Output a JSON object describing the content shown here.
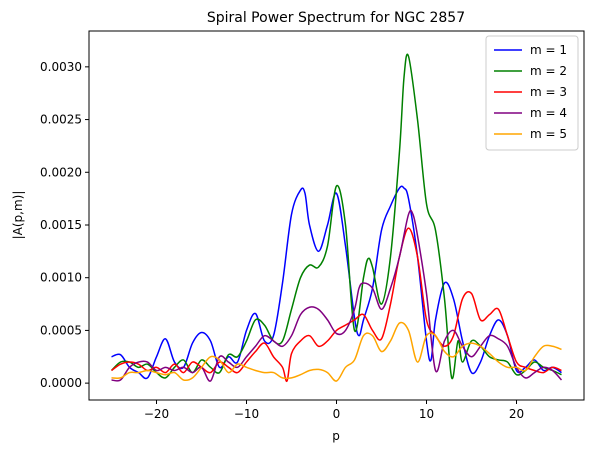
{
  "chart_data": {
    "type": "line",
    "title": "Spiral Power Spectrum for NGC 2857",
    "xlabel": "p",
    "ylabel": "|A(p,m)|",
    "xlim": [
      -27.5,
      27.5
    ],
    "ylim": [
      -0.00016,
      0.00334
    ],
    "xticks": [
      -20,
      -10,
      0,
      10,
      20
    ],
    "xtick_labels": [
      "−20",
      "−10",
      "0",
      "10",
      "20"
    ],
    "yticks": [
      0.0,
      0.0005,
      0.001,
      0.0015,
      0.002,
      0.0025,
      0.003
    ],
    "ytick_labels": [
      "0.0000",
      "0.0005",
      "0.0010",
      "0.0015",
      "0.0020",
      "0.0025",
      "0.0030"
    ],
    "grid": false,
    "legend_position": "top-right",
    "series": [
      {
        "name": "m = 1",
        "color": "#0000ff",
        "x": [
          -25,
          -24,
          -23,
          -22,
          -21,
          -20,
          -19,
          -18,
          -17,
          -16,
          -15,
          -14,
          -13,
          -12,
          -11,
          -10,
          -9,
          -8,
          -7,
          -6,
          -5,
          -4,
          -3.5,
          -3,
          -2,
          -1,
          0,
          1,
          2,
          2.5,
          3,
          4,
          5,
          6,
          7,
          7.5,
          8,
          9,
          10,
          10.5,
          11,
          12,
          13,
          14,
          15,
          16,
          17,
          18,
          19,
          20,
          21,
          22,
          23,
          24,
          25
        ],
        "y": [
          0.00025,
          0.00027,
          0.00015,
          0.0001,
          5e-05,
          0.00025,
          0.00042,
          0.0002,
          0.00015,
          0.00038,
          0.00048,
          0.0004,
          0.00015,
          0.00025,
          0.0002,
          0.0005,
          0.00066,
          0.0004,
          0.00045,
          0.00095,
          0.0016,
          0.00183,
          0.0018,
          0.0015,
          0.00125,
          0.0015,
          0.0018,
          0.0013,
          0.00062,
          0.00045,
          0.0006,
          0.0009,
          0.00145,
          0.00168,
          0.00185,
          0.00185,
          0.00175,
          0.0012,
          0.0004,
          0.00022,
          0.0006,
          0.00095,
          0.0008,
          0.0004,
          0.0001,
          0.0002,
          0.00045,
          0.0006,
          0.00045,
          0.00012,
          0.00015,
          0.00022,
          0.00012,
          0.00015,
          0.0001
        ]
      },
      {
        "name": "m = 2",
        "color": "#008000",
        "x": [
          -25,
          -24,
          -23,
          -22,
          -21,
          -20,
          -19,
          -18,
          -17,
          -16,
          -15,
          -14,
          -13,
          -12,
          -11,
          -10,
          -9,
          -8,
          -7,
          -6,
          -5,
          -4,
          -3,
          -2,
          -1,
          0,
          1,
          2,
          3,
          3.5,
          4,
          5,
          6,
          7,
          7.5,
          8,
          9,
          10,
          11,
          12,
          12.8,
          13.5,
          14,
          15,
          16,
          17,
          18,
          19,
          20,
          21,
          22,
          23,
          24,
          25
        ],
        "y": [
          0.00012,
          0.0002,
          0.0002,
          0.00015,
          0.00018,
          0.0001,
          5e-05,
          0.00015,
          0.00022,
          0.0001,
          0.00022,
          0.00015,
          0.0001,
          0.00027,
          0.00025,
          0.0004,
          0.0006,
          0.00055,
          0.0004,
          0.0004,
          0.0007,
          0.001,
          0.00112,
          0.0011,
          0.0013,
          0.00187,
          0.0015,
          0.0005,
          0.001,
          0.00118,
          0.0011,
          0.00075,
          0.0012,
          0.0022,
          0.0029,
          0.0031,
          0.0025,
          0.0017,
          0.00145,
          0.0008,
          5e-05,
          0.0004,
          0.0002,
          0.0004,
          0.00035,
          0.00025,
          0.00022,
          0.0002,
          8e-05,
          0.00012,
          0.0002,
          0.00015,
          0.00012,
          8e-05
        ]
      },
      {
        "name": "m = 3",
        "color": "#ff0000",
        "x": [
          -25,
          -24,
          -23,
          -22,
          -21,
          -20,
          -19,
          -18,
          -17,
          -16,
          -15,
          -14,
          -13,
          -12,
          -11,
          -10,
          -9,
          -8,
          -7,
          -6,
          -5.5,
          -5,
          -4,
          -3,
          -2,
          -1,
          0,
          1,
          2,
          3,
          4,
          5,
          6,
          7,
          8,
          9,
          10,
          11,
          12,
          13,
          14,
          15,
          16,
          17,
          18,
          19,
          20,
          21,
          22,
          23,
          24,
          25
        ],
        "y": [
          0.00012,
          0.00018,
          0.0002,
          0.00018,
          0.00012,
          0.00015,
          0.0001,
          0.00018,
          0.0001,
          0.0002,
          0.00015,
          0.0001,
          0.0002,
          0.00015,
          0.0001,
          0.0002,
          0.0003,
          0.00038,
          0.00025,
          0.00015,
          2e-05,
          0.00028,
          0.0004,
          0.00045,
          0.00035,
          0.0004,
          0.0005,
          0.00055,
          0.0006,
          0.00065,
          0.0005,
          0.00042,
          0.00075,
          0.0012,
          0.00147,
          0.0012,
          0.0006,
          0.00045,
          0.00035,
          0.00045,
          0.0008,
          0.00085,
          0.0006,
          0.00065,
          0.0007,
          0.00045,
          0.0002,
          0.00015,
          0.00012,
          0.0001,
          0.00015,
          0.00012
        ]
      },
      {
        "name": "m = 4",
        "color": "#800080",
        "x": [
          -25,
          -24,
          -23,
          -22,
          -21,
          -20,
          -19,
          -18,
          -17,
          -16,
          -15,
          -14,
          -13,
          -12,
          -11,
          -10,
          -9,
          -8,
          -7,
          -6,
          -5,
          -4,
          -3,
          -2,
          -1,
          0,
          1,
          2,
          2.5,
          3,
          4,
          5,
          6,
          7,
          8,
          8.5,
          9,
          10,
          11,
          12,
          13,
          14,
          15,
          16,
          17,
          18,
          19,
          20,
          21,
          22,
          23,
          24,
          25
        ],
        "y": [
          3e-05,
          3e-05,
          0.00015,
          0.0002,
          0.0002,
          0.00012,
          0.00015,
          0.00012,
          0.00015,
          0.0001,
          0.00015,
          2e-05,
          0.00025,
          0.0002,
          0.00015,
          0.00025,
          0.00035,
          0.00045,
          0.0004,
          0.00035,
          0.00045,
          0.00065,
          0.00072,
          0.0007,
          0.0006,
          0.00047,
          0.0005,
          0.0007,
          0.0009,
          0.00095,
          0.0009,
          0.0007,
          0.0009,
          0.0012,
          0.0016,
          0.0016,
          0.0014,
          0.00085,
          0.00012,
          0.0004,
          0.0005,
          0.00035,
          0.00025,
          0.00035,
          0.00045,
          0.00042,
          0.00035,
          0.00015,
          5e-05,
          0.0001,
          0.00015,
          0.00012,
          3e-05
        ]
      },
      {
        "name": "m = 5",
        "color": "#ffa500",
        "x": [
          -25,
          -24,
          -23,
          -22,
          -21,
          -20,
          -19,
          -18,
          -17,
          -16,
          -15,
          -14,
          -13,
          -12,
          -11,
          -10,
          -9,
          -8,
          -7,
          -6,
          -5,
          -4,
          -3,
          -2,
          -1,
          0,
          1,
          2,
          3,
          4,
          5,
          6,
          7,
          8,
          9,
          10,
          11,
          12,
          13,
          14,
          15,
          16,
          17,
          18,
          19,
          20,
          21,
          22,
          23,
          24,
          25
        ],
        "y": [
          5e-05,
          5e-05,
          0.0001,
          0.0001,
          0.00012,
          0.0001,
          8e-05,
          0.0001,
          3e-05,
          5e-05,
          0.00015,
          0.00025,
          0.00022,
          0.0001,
          0.00018,
          0.00015,
          0.00012,
          0.0001,
          0.0001,
          5e-05,
          5e-05,
          8e-05,
          0.00012,
          0.00013,
          0.0001,
          2e-05,
          0.00015,
          0.00022,
          0.00045,
          0.00045,
          0.0003,
          0.0004,
          0.00057,
          0.0005,
          0.0002,
          0.00045,
          0.00045,
          0.0003,
          0.00025,
          0.00035,
          0.00038,
          0.00035,
          0.00028,
          0.0002,
          0.00015,
          0.00015,
          0.00012,
          0.00025,
          0.00035,
          0.00035,
          0.00032
        ]
      }
    ]
  }
}
